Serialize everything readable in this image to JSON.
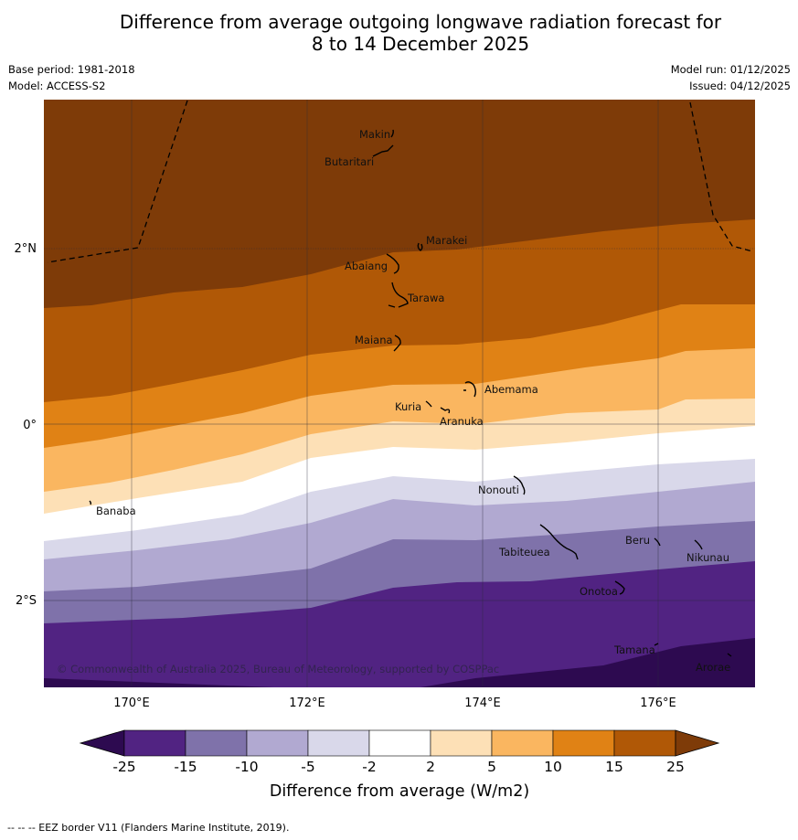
{
  "title": {
    "line1": "Difference from average outgoing longwave radiation forecast for",
    "line2": "8 to 14 December 2025"
  },
  "meta": {
    "base_period": "Base period: 1981-2018",
    "model": "Model: ACCESS-S2",
    "model_run": "Model run: 01/12/2025",
    "issued": "Issued: 04/12/2025"
  },
  "map": {
    "lon_ticks": [
      "170°E",
      "172°E",
      "174°E",
      "176°E"
    ],
    "lat_ticks": [
      "2°N",
      "0°",
      "2°S"
    ],
    "copyright": "© Commonwealth of Australia 2025, Bureau of Meteorology, supported by COSPPac",
    "places": [
      "Makin",
      "Butaritari",
      "Marakei",
      "Abaiang",
      "Tarawa",
      "Maiana",
      "Abemama",
      "Kuria",
      "Aranuka",
      "Nonouti",
      "Banaba",
      "Beru",
      "Tabiteuea",
      "Nikunau",
      "Onotoa",
      "Tamana",
      "Arorae"
    ]
  },
  "legend": {
    "title": "Difference from average (W/m2)",
    "tick_labels": [
      "-25",
      "-15",
      "-10",
      "-5",
      "-2",
      "2",
      "5",
      "10",
      "15",
      "25"
    ],
    "colors": [
      "#2d0a50",
      "#512382",
      "#7f72aa",
      "#b1a9d1",
      "#d9d8ea",
      "#ffffff",
      "#fde0b6",
      "#fab660",
      "#e08215",
      "#b05806",
      "#7e3b08"
    ]
  },
  "footer": "--  --  -- EEZ border V11 (Flanders Marine Institute, 2019)."
}
